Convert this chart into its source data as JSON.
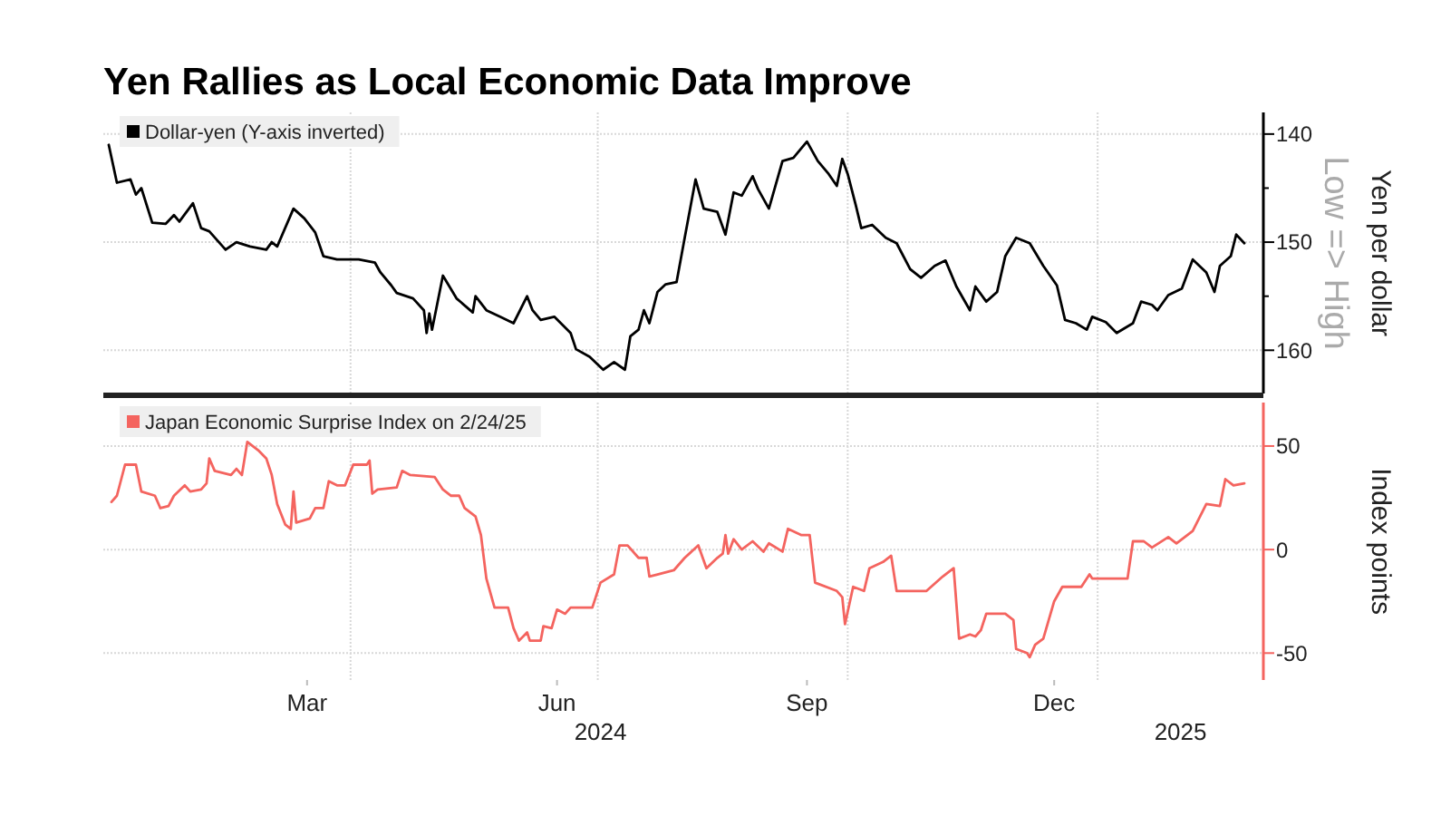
{
  "chart_data": [
    {
      "type": "line",
      "title": "Yen Rallies as Local Economic Data Improve",
      "ylabel": "Yen per dollar",
      "annotations": [
        "Low => High"
      ],
      "legend": "top left",
      "grid": true,
      "tick_labels": "y",
      "xlim": [
        "2024-01-01",
        "2025-03-03"
      ],
      "ylim": [
        164,
        138
      ],
      "yticks": [
        140,
        {
          "value": 145,
          "label": null
        },
        150,
        {
          "value": 155,
          "label": null
        },
        160
      ],
      "xticks": [
        {
          "value": "2024-04-01",
          "label": null
        },
        {
          "value": "2024-07-01",
          "label": null
        },
        {
          "value": "2024-10-01",
          "label": null
        },
        {
          "value": "2025-01-01",
          "label": null
        }
      ],
      "series": [
        {
          "name": "Dollar-yen (Y-axis inverted)",
          "color": "#000000",
          "x": [
            "2024-01-03",
            "2024-01-06",
            "2024-01-11",
            "2024-01-13",
            "2024-01-15",
            "2024-01-19",
            "2024-01-24",
            "2024-01-27",
            "2024-01-29",
            "2024-02-03",
            "2024-02-06",
            "2024-02-09",
            "2024-02-15",
            "2024-02-19",
            "2024-02-24",
            "2024-03-01",
            "2024-03-03",
            "2024-03-05",
            "2024-03-11",
            "2024-03-15",
            "2024-03-19",
            "2024-03-22",
            "2024-03-27",
            "2024-04-04",
            "2024-04-10",
            "2024-04-12",
            "2024-04-16",
            "2024-04-18",
            "2024-04-24",
            "2024-04-28",
            "2024-04-29",
            "2024-04-30",
            "2024-05-01",
            "2024-05-05",
            "2024-05-10",
            "2024-05-16",
            "2024-05-17",
            "2024-05-21",
            "2024-05-26",
            "2024-05-31",
            "2024-06-05",
            "2024-06-07",
            "2024-06-10",
            "2024-06-15",
            "2024-06-21",
            "2024-06-23",
            "2024-06-28",
            "2024-07-03",
            "2024-07-07",
            "2024-07-11",
            "2024-07-13",
            "2024-07-16",
            "2024-07-18",
            "2024-07-20",
            "2024-07-23",
            "2024-07-26",
            "2024-07-30",
            "2024-08-02",
            "2024-08-06",
            "2024-08-09",
            "2024-08-14",
            "2024-08-17",
            "2024-08-20",
            "2024-08-23",
            "2024-08-27",
            "2024-08-29",
            "2024-09-02",
            "2024-09-07",
            "2024-09-11",
            "2024-09-16",
            "2024-09-20",
            "2024-09-24",
            "2024-09-27",
            "2024-09-29",
            "2024-10-01",
            "2024-10-04",
            "2024-10-06",
            "2024-10-10",
            "2024-10-15",
            "2024-10-19",
            "2024-10-24",
            "2024-10-28",
            "2024-11-02",
            "2024-11-06",
            "2024-11-10",
            "2024-11-15",
            "2024-11-17",
            "2024-11-21",
            "2024-11-25",
            "2024-11-28",
            "2024-12-02",
            "2024-12-07",
            "2024-12-12",
            "2024-12-17",
            "2024-12-20",
            "2024-12-24",
            "2024-12-28",
            "2024-12-30",
            "2025-01-04",
            "2025-01-08",
            "2025-01-14",
            "2025-01-17",
            "2025-01-21",
            "2025-01-23",
            "2025-01-27",
            "2025-02-01",
            "2025-02-05",
            "2025-02-10",
            "2025-02-13",
            "2025-02-15",
            "2025-02-19",
            "2025-02-21",
            "2025-02-24"
          ],
          "values": [
            141,
            144.5,
            144.2,
            145.6,
            145,
            148.2,
            148.3,
            147.5,
            148.1,
            146.4,
            148.7,
            149,
            150.7,
            150,
            150.4,
            150.7,
            150,
            150.4,
            146.9,
            147.8,
            149.1,
            151.3,
            151.6,
            151.6,
            151.9,
            152.8,
            154,
            154.7,
            155.2,
            156.3,
            158.4,
            156.6,
            158.1,
            153.1,
            155.2,
            156.5,
            155,
            156.3,
            156.9,
            157.5,
            155,
            156.3,
            157.2,
            156.9,
            158.4,
            159.9,
            160.6,
            161.8,
            161.1,
            161.8,
            158.7,
            158.1,
            156.3,
            157.5,
            154.6,
            153.9,
            153.7,
            149.6,
            144.2,
            146.9,
            147.2,
            149.3,
            145.4,
            145.7,
            143.9,
            145.1,
            146.9,
            142.5,
            142.2,
            140.7,
            142.5,
            143.7,
            144.8,
            142.3,
            143.7,
            146.6,
            148.7,
            148.4,
            149.6,
            150.1,
            152.5,
            153.3,
            152.2,
            151.7,
            154.1,
            156.3,
            154.1,
            155.5,
            154.6,
            151.3,
            149.6,
            150.1,
            152.2,
            154,
            157.2,
            157.5,
            158.1,
            156.9,
            157.4,
            158.4,
            157.5,
            155.5,
            155.8,
            156.3,
            154.9,
            154.3,
            151.6,
            152.8,
            154.6,
            152.2,
            151.3,
            149.3,
            150.1
          ]
        }
      ]
    },
    {
      "type": "line",
      "ylabel": "Index points",
      "annotations": [
        "2024",
        "2025"
      ],
      "legend": "top left",
      "grid": true,
      "xlim": [
        "2024-01-01",
        "2025-03-03"
      ],
      "ylim": [
        -63,
        71
      ],
      "yticks": [
        -50,
        0,
        50
      ],
      "xticks": [
        {
          "value": "2024-04-01",
          "label": null
        },
        {
          "value": "2024-07-01",
          "label": null
        },
        {
          "value": "2024-10-01",
          "label": null
        },
        {
          "value": "2025-01-01",
          "label": null
        },
        {
          "value": "2024-03-16",
          "label": "Mar"
        },
        {
          "value": "2024-06-16",
          "label": "Jun"
        },
        {
          "value": "2024-09-16",
          "label": "Sep"
        },
        {
          "value": "2024-12-16",
          "label": "Dec"
        }
      ],
      "series": [
        {
          "name": "Japan Economic Surprise Index on 2/24/25",
          "color": "#f4645f",
          "x": [
            "2024-01-04",
            "2024-01-06",
            "2024-01-09",
            "2024-01-13",
            "2024-01-15",
            "2024-01-20",
            "2024-01-22",
            "2024-01-25",
            "2024-01-27",
            "2024-01-31",
            "2024-02-02",
            "2024-02-06",
            "2024-02-08",
            "2024-02-09",
            "2024-02-11",
            "2024-02-17",
            "2024-02-19",
            "2024-02-21",
            "2024-02-23",
            "2024-02-27",
            "2024-03-01",
            "2024-03-03",
            "2024-03-05",
            "2024-03-08",
            "2024-03-10",
            "2024-03-11",
            "2024-03-12",
            "2024-03-17",
            "2024-03-19",
            "2024-03-22",
            "2024-03-24",
            "2024-03-27",
            "2024-03-30",
            "2024-04-02",
            "2024-04-07",
            "2024-04-08",
            "2024-04-09",
            "2024-04-11",
            "2024-04-18",
            "2024-04-20",
            "2024-04-23",
            "2024-05-02",
            "2024-05-05",
            "2024-05-08",
            "2024-05-11",
            "2024-05-13",
            "2024-05-17",
            "2024-05-19",
            "2024-05-21",
            "2024-05-24",
            "2024-05-29",
            "2024-05-31",
            "2024-06-02",
            "2024-06-05",
            "2024-06-06",
            "2024-06-10",
            "2024-06-11",
            "2024-06-14",
            "2024-06-16",
            "2024-06-19",
            "2024-06-21",
            "2024-06-29",
            "2024-07-02",
            "2024-07-07",
            "2024-07-09",
            "2024-07-12",
            "2024-07-16",
            "2024-07-19",
            "2024-07-20",
            "2024-07-23",
            "2024-07-29",
            "2024-08-02",
            "2024-08-07",
            "2024-08-10",
            "2024-08-14",
            "2024-08-16",
            "2024-08-17",
            "2024-08-18",
            "2024-08-20",
            "2024-08-23",
            "2024-08-27",
            "2024-08-31",
            "2024-09-02",
            "2024-09-07",
            "2024-09-09",
            "2024-09-14",
            "2024-09-17",
            "2024-09-19",
            "2024-09-27",
            "2024-09-29",
            "2024-09-30",
            "2024-10-03",
            "2024-10-07",
            "2024-10-09",
            "2024-10-14",
            "2024-10-17",
            "2024-10-19",
            "2024-10-30",
            "2024-11-05",
            "2024-11-09",
            "2024-11-11",
            "2024-11-15",
            "2024-11-17",
            "2024-11-19",
            "2024-11-21",
            "2024-11-28",
            "2024-12-01",
            "2024-12-02",
            "2024-12-06",
            "2024-12-07",
            "2024-12-09",
            "2024-12-12",
            "2024-12-16",
            "2024-12-19",
            "2024-12-26",
            "2024-12-29",
            "2024-12-30",
            "2025-01-09",
            "2025-01-12",
            "2025-01-14",
            "2025-01-18",
            "2025-01-21",
            "2025-01-27",
            "2025-01-30",
            "2025-02-05",
            "2025-02-10",
            "2025-02-15",
            "2025-02-17",
            "2025-02-20",
            "2025-02-24"
          ],
          "values": [
            23,
            26,
            41,
            41,
            28,
            26,
            20,
            21,
            26,
            31,
            28,
            29,
            32,
            44,
            38,
            36,
            39,
            36,
            52,
            48,
            44,
            36,
            22,
            12,
            10,
            28,
            13,
            15,
            20,
            20,
            33,
            31,
            31,
            41,
            41,
            43,
            27,
            29,
            30,
            38,
            36,
            35,
            29,
            26,
            26,
            20,
            16,
            7,
            -14,
            -28,
            -28,
            -38,
            -44,
            -40,
            -44,
            -44,
            -37,
            -38,
            -29,
            -31,
            -28,
            -28,
            -16,
            -12,
            2,
            2,
            -4,
            -4,
            -13,
            -12,
            -10,
            -4,
            2,
            -9,
            -4,
            -2,
            7,
            -2,
            5,
            0,
            4,
            -1,
            3,
            -1,
            10,
            7,
            7,
            -16,
            -20,
            -23,
            -36,
            -18,
            -20,
            -9,
            -6,
            -3,
            -20,
            -20,
            -13,
            -9,
            -43,
            -41,
            -42,
            -39,
            -31,
            -31,
            -34,
            -48,
            -50,
            -52,
            -46,
            -43,
            -25,
            -18,
            -18,
            -12,
            -14,
            -14,
            -14,
            4,
            4,
            1,
            6,
            3,
            9,
            22,
            21,
            34,
            31,
            32
          ]
        }
      ]
    }
  ]
}
